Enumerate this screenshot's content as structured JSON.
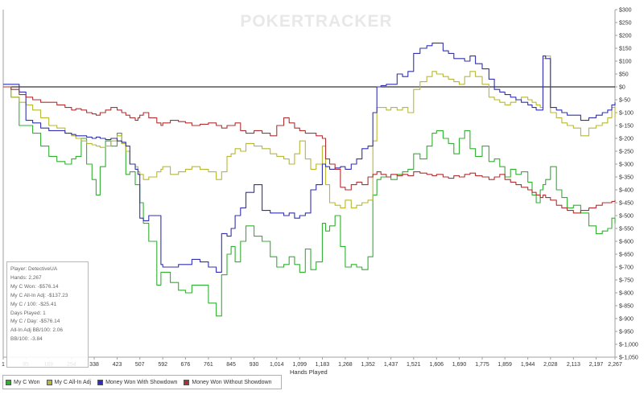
{
  "watermark": "POKERTRACKER",
  "colors": {
    "background": "#ffffff",
    "zero_line": "#000000",
    "axis": "#a0a0a0"
  },
  "chart_data": {
    "type": "line",
    "xlabel": "Hands Played",
    "ylabel": "",
    "xlim": [
      1,
      2267
    ],
    "ylim": [
      -1050,
      300
    ],
    "x_ticks": [
      "1",
      "85",
      "169",
      "254",
      "338",
      "423",
      "507",
      "592",
      "676",
      "761",
      "845",
      "930",
      "1,014",
      "1,099",
      "1,183",
      "1,268",
      "1,352",
      "1,437",
      "1,521",
      "1,606",
      "1,690",
      "1,775",
      "1,859",
      "1,944",
      "2,028",
      "2,113",
      "2,197",
      "2,267"
    ],
    "x_tick_values": [
      1,
      85,
      169,
      254,
      338,
      423,
      507,
      592,
      676,
      761,
      845,
      930,
      1014,
      1099,
      1183,
      1268,
      1352,
      1437,
      1521,
      1606,
      1690,
      1775,
      1859,
      1944,
      2028,
      2113,
      2197,
      2267
    ],
    "y_ticks": [
      "$300",
      "$250",
      "$200",
      "$150",
      "$100",
      "$50",
      "$0",
      "$-50",
      "$-100",
      "$-150",
      "$-200",
      "$-250",
      "$-300",
      "$-350",
      "$-400",
      "$-450",
      "$-500",
      "$-550",
      "$-600",
      "$-650",
      "$-700",
      "$-750",
      "$-800",
      "$-850",
      "$-900",
      "$-950",
      "$-1,000",
      "$-1,050"
    ],
    "y_tick_values": [
      300,
      250,
      200,
      150,
      100,
      50,
      0,
      -50,
      -100,
      -150,
      -200,
      -250,
      -300,
      -350,
      -400,
      -450,
      -500,
      -550,
      -600,
      -650,
      -700,
      -750,
      -800,
      -850,
      -900,
      -950,
      -1000,
      -1050
    ],
    "zero_line": 0,
    "grid": false,
    "legend_position": "bottom",
    "series": [
      {
        "name": "My C Won",
        "color": "#30b030",
        "x": [
          1,
          30,
          60,
          85,
          110,
          140,
          170,
          200,
          230,
          254,
          270,
          290,
          310,
          330,
          345,
          360,
          380,
          400,
          423,
          440,
          455,
          470,
          490,
          500,
          507,
          520,
          540,
          570,
          585,
          592,
          620,
          650,
          676,
          700,
          730,
          761,
          790,
          810,
          830,
          845,
          860,
          880,
          900,
          930,
          960,
          990,
          1014,
          1040,
          1060,
          1080,
          1099,
          1120,
          1140,
          1160,
          1183,
          1195,
          1210,
          1230,
          1250,
          1268,
          1290,
          1310,
          1330,
          1352,
          1370,
          1385,
          1400,
          1420,
          1437,
          1460,
          1480,
          1500,
          1521,
          1545,
          1570,
          1590,
          1606,
          1630,
          1650,
          1670,
          1690,
          1710,
          1730,
          1750,
          1775,
          1800,
          1820,
          1840,
          1859,
          1880,
          1900,
          1920,
          1944,
          1960,
          1975,
          1990,
          2000,
          2010,
          2028,
          2050,
          2070,
          2090,
          2113,
          2140,
          2170,
          2197,
          2220,
          2240,
          2255,
          2267
        ],
        "y": [
          0,
          -40,
          -150,
          -150,
          -180,
          -230,
          -270,
          -290,
          -300,
          -280,
          -270,
          -200,
          -300,
          -360,
          -420,
          -310,
          -210,
          -230,
          -180,
          -220,
          -340,
          -330,
          -380,
          -380,
          -450,
          -530,
          -600,
          -770,
          -720,
          -720,
          -760,
          -790,
          -800,
          -770,
          -770,
          -840,
          -890,
          -730,
          -650,
          -620,
          -680,
          -600,
          -540,
          -580,
          -600,
          -660,
          -700,
          -690,
          -660,
          -690,
          -720,
          -630,
          -710,
          -680,
          -530,
          -560,
          -540,
          -500,
          -620,
          -700,
          -690,
          -700,
          -710,
          -660,
          -420,
          -360,
          -350,
          -350,
          -360,
          -340,
          -330,
          -320,
          -260,
          -280,
          -230,
          -180,
          -170,
          -200,
          -220,
          -260,
          -200,
          -170,
          -240,
          -270,
          -230,
          -290,
          -280,
          -310,
          -350,
          -320,
          -340,
          -330,
          -370,
          -420,
          -450,
          -400,
          -380,
          -360,
          -310,
          -400,
          -430,
          -470,
          -460,
          -490,
          -540,
          -570,
          -560,
          -550,
          -510,
          -530
        ]
      },
      {
        "name": "My C All-In Adj",
        "color": "#b8b830",
        "x": [
          1,
          30,
          60,
          85,
          110,
          140,
          170,
          200,
          230,
          254,
          270,
          290,
          310,
          330,
          345,
          360,
          380,
          400,
          423,
          440,
          455,
          470,
          490,
          500,
          507,
          520,
          540,
          570,
          585,
          592,
          620,
          650,
          676,
          700,
          730,
          761,
          790,
          810,
          830,
          845,
          860,
          880,
          900,
          930,
          960,
          990,
          1014,
          1040,
          1060,
          1080,
          1099,
          1120,
          1140,
          1160,
          1183,
          1195,
          1210,
          1230,
          1250,
          1268,
          1290,
          1310,
          1330,
          1352,
          1370,
          1385,
          1400,
          1420,
          1437,
          1460,
          1480,
          1500,
          1521,
          1545,
          1570,
          1590,
          1606,
          1630,
          1650,
          1670,
          1690,
          1710,
          1730,
          1750,
          1775,
          1800,
          1820,
          1840,
          1859,
          1880,
          1900,
          1920,
          1944,
          1960,
          1975,
          1990,
          2000,
          2010,
          2028,
          2050,
          2070,
          2090,
          2113,
          2140,
          2170,
          2197,
          2220,
          2240,
          2255,
          2267
        ],
        "y": [
          0,
          -40,
          -60,
          -70,
          -90,
          -120,
          -150,
          -160,
          -180,
          -190,
          -200,
          -210,
          -220,
          -225,
          -230,
          -235,
          -230,
          -210,
          -190,
          -220,
          -250,
          -300,
          -310,
          -330,
          -340,
          -360,
          -350,
          -330,
          -320,
          -310,
          -340,
          -330,
          -320,
          -310,
          -320,
          -330,
          -360,
          -330,
          -270,
          -260,
          -240,
          -250,
          -220,
          -230,
          -240,
          -260,
          -270,
          -280,
          -300,
          -260,
          -210,
          -280,
          -320,
          -300,
          -230,
          -380,
          -450,
          -460,
          -470,
          -440,
          -470,
          -460,
          -450,
          -440,
          -210,
          -80,
          -80,
          -90,
          -80,
          -90,
          -80,
          -100,
          -10,
          20,
          40,
          60,
          50,
          40,
          30,
          20,
          10,
          40,
          60,
          40,
          10,
          -40,
          -50,
          -60,
          -70,
          -60,
          -50,
          -40,
          -50,
          -60,
          -70,
          -80,
          110,
          120,
          -100,
          -120,
          -140,
          -150,
          -160,
          -190,
          -160,
          -150,
          -140,
          -120,
          -80,
          -120
        ]
      },
      {
        "name": "Money Won With Showdown",
        "color": "#3030b0",
        "x": [
          1,
          30,
          60,
          85,
          110,
          140,
          170,
          200,
          230,
          254,
          270,
          290,
          310,
          330,
          345,
          360,
          380,
          400,
          423,
          440,
          455,
          470,
          490,
          500,
          507,
          520,
          540,
          570,
          585,
          592,
          620,
          650,
          676,
          700,
          730,
          761,
          790,
          810,
          830,
          845,
          860,
          880,
          900,
          930,
          960,
          990,
          1014,
          1040,
          1060,
          1080,
          1099,
          1120,
          1140,
          1160,
          1183,
          1195,
          1210,
          1230,
          1250,
          1268,
          1290,
          1310,
          1330,
          1352,
          1370,
          1385,
          1400,
          1420,
          1437,
          1460,
          1480,
          1500,
          1521,
          1545,
          1570,
          1590,
          1606,
          1630,
          1650,
          1670,
          1690,
          1710,
          1730,
          1750,
          1775,
          1800,
          1820,
          1840,
          1859,
          1880,
          1900,
          1920,
          1944,
          1960,
          1975,
          1990,
          2000,
          2010,
          2028,
          2050,
          2070,
          2090,
          2113,
          2140,
          2170,
          2197,
          2220,
          2240,
          2255,
          2267
        ],
        "y": [
          10,
          10,
          -20,
          -130,
          -140,
          -160,
          -170,
          -170,
          -180,
          -185,
          -190,
          -190,
          -195,
          -200,
          -195,
          -200,
          -205,
          -200,
          -210,
          -215,
          -230,
          -300,
          -320,
          -340,
          -510,
          -520,
          -500,
          -500,
          -690,
          -700,
          -700,
          -690,
          -690,
          -670,
          -680,
          -700,
          -720,
          -570,
          -580,
          -550,
          -500,
          -470,
          -410,
          -380,
          -480,
          -490,
          -490,
          -500,
          -490,
          -510,
          -500,
          -490,
          -400,
          -380,
          -300,
          -310,
          -320,
          -315,
          -310,
          -320,
          -300,
          -280,
          -240,
          -230,
          -100,
          0,
          5,
          10,
          10,
          50,
          40,
          60,
          130,
          150,
          160,
          170,
          170,
          140,
          130,
          110,
          110,
          100,
          120,
          90,
          70,
          30,
          -10,
          -20,
          -30,
          -40,
          -50,
          -60,
          -70,
          -80,
          -90,
          -90,
          120,
          110,
          -80,
          -90,
          -100,
          -110,
          -110,
          -130,
          -120,
          -110,
          -100,
          -90,
          -70,
          -60
        ]
      },
      {
        "name": "Money Won Without Showdown",
        "color": "#b03030",
        "x": [
          1,
          30,
          60,
          85,
          110,
          140,
          170,
          200,
          230,
          254,
          270,
          290,
          310,
          330,
          345,
          360,
          380,
          400,
          423,
          440,
          455,
          470,
          490,
          500,
          507,
          520,
          540,
          570,
          585,
          592,
          620,
          650,
          676,
          700,
          730,
          761,
          790,
          810,
          830,
          845,
          860,
          880,
          900,
          930,
          960,
          990,
          1014,
          1040,
          1060,
          1080,
          1099,
          1120,
          1140,
          1160,
          1183,
          1195,
          1210,
          1230,
          1250,
          1268,
          1290,
          1310,
          1330,
          1352,
          1370,
          1385,
          1400,
          1420,
          1437,
          1460,
          1480,
          1500,
          1521,
          1545,
          1570,
          1590,
          1606,
          1630,
          1650,
          1670,
          1690,
          1710,
          1730,
          1750,
          1775,
          1800,
          1820,
          1840,
          1859,
          1880,
          1900,
          1920,
          1944,
          1960,
          1975,
          1990,
          2000,
          2010,
          2028,
          2050,
          2070,
          2090,
          2113,
          2140,
          2170,
          2197,
          2220,
          2240,
          2255,
          2267
        ],
        "y": [
          0,
          -10,
          -30,
          -40,
          -50,
          -60,
          -60,
          -70,
          -80,
          -90,
          -85,
          -90,
          -100,
          -105,
          -110,
          -100,
          -90,
          -80,
          -90,
          -100,
          -110,
          -120,
          -130,
          -120,
          -110,
          -100,
          -120,
          -140,
          -150,
          -140,
          -130,
          -135,
          -140,
          -150,
          -145,
          -140,
          -150,
          -160,
          -150,
          -150,
          -140,
          -170,
          -180,
          -170,
          -180,
          -190,
          -150,
          -120,
          -140,
          -160,
          -170,
          -180,
          -180,
          -190,
          -200,
          -280,
          -300,
          -320,
          -390,
          -400,
          -380,
          -370,
          -380,
          -350,
          -340,
          -330,
          -340,
          -350,
          -340,
          -345,
          -340,
          -345,
          -330,
          -335,
          -340,
          -345,
          -340,
          -350,
          -355,
          -345,
          -350,
          -340,
          -335,
          -345,
          -350,
          -360,
          -350,
          -340,
          -360,
          -370,
          -380,
          -390,
          -400,
          -410,
          -420,
          -430,
          -420,
          -430,
          -440,
          -460,
          -470,
          -480,
          -490,
          -480,
          -470,
          -460,
          -450,
          -450,
          -445,
          -440
        ]
      }
    ]
  },
  "legend": {
    "items": [
      {
        "label": "My C Won",
        "color": "#30b030"
      },
      {
        "label": "My C All-In Adj",
        "color": "#b8b830"
      },
      {
        "label": "Money Won With Showdown",
        "color": "#3030b0"
      },
      {
        "label": "Money Won Without Showdown",
        "color": "#b03030"
      }
    ]
  },
  "stats": {
    "lines": [
      "Player: DetectiveUA",
      "Hands: 2,267",
      "My C Won: -$576.14",
      "My C All-In Adj: -$137.23",
      "My C / 100: -$25.41",
      "Days Played: 1",
      "My C / Day: -$576.14",
      "All-In Adj BB/100: 2.06",
      "BB/100: -3.84"
    ]
  }
}
